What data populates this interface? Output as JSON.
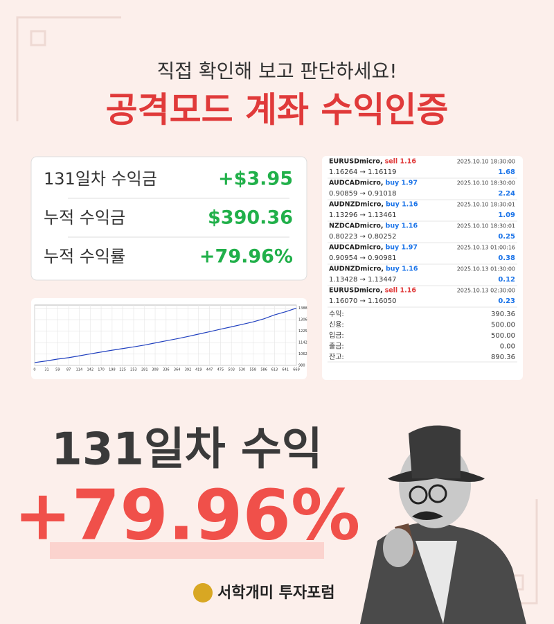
{
  "header": {
    "subtitle": "직접 확인해 보고 판단하세요!",
    "title": "공격모드 계좌 수익인증"
  },
  "stats": [
    {
      "label": "131일차 수익금",
      "value": "+$3.95"
    },
    {
      "label": "누적 수익금",
      "value": "$390.36"
    },
    {
      "label": "누적 수익률",
      "value": "+79.96%"
    }
  ],
  "chart_data": {
    "type": "line",
    "x": [
      0,
      31,
      59,
      87,
      114,
      142,
      170,
      198,
      225,
      253,
      281,
      308,
      336,
      364,
      392,
      419,
      447,
      475,
      503,
      530,
      558,
      586,
      613,
      641,
      669
    ],
    "values": [
      1000,
      1012,
      1025,
      1035,
      1048,
      1062,
      1075,
      1088,
      1100,
      1112,
      1125,
      1140,
      1155,
      1170,
      1186,
      1203,
      1220,
      1238,
      1255,
      1272,
      1290,
      1312,
      1340,
      1362,
      1388
    ],
    "color": "#1f3fbf",
    "xlim": [
      0,
      669
    ],
    "ylim": [
      980,
      1410
    ],
    "xticks": [
      0,
      31,
      59,
      87,
      114,
      142,
      170,
      198,
      225,
      253,
      281,
      308,
      336,
      364,
      392,
      419,
      447,
      475,
      503,
      530,
      558,
      586,
      613,
      641,
      669
    ],
    "yticks": [
      980,
      1062,
      1142,
      1225,
      1306,
      1388
    ],
    "grid": true
  },
  "trades": [
    {
      "symbol": "EURUSDmicro,",
      "side": "sell 1.16",
      "time": "2025.10.10 18:30:00",
      "prices": "1.16264 → 1.16119",
      "profit": "1.68"
    },
    {
      "symbol": "AUDCADmicro,",
      "side": "buy 1.97",
      "time": "2025.10.10 18:30:00",
      "prices": "0.90859 → 0.91018",
      "profit": "2.24"
    },
    {
      "symbol": "AUDNZDmicro,",
      "side": "buy 1.16",
      "time": "2025.10.10 18:30:01",
      "prices": "1.13296 → 1.13461",
      "profit": "1.09"
    },
    {
      "symbol": "NZDCADmicro,",
      "side": "buy 1.16",
      "time": "2025.10.10 18:30:01",
      "prices": "0.80223 → 0.80252",
      "profit": "0.25"
    },
    {
      "symbol": "AUDCADmicro,",
      "side": "buy 1.97",
      "time": "2025.10.13 01:00:16",
      "prices": "0.90954 → 0.90981",
      "profit": "0.38"
    },
    {
      "symbol": "AUDNZDmicro,",
      "side": "buy 1.16",
      "time": "2025.10.13 01:30:00",
      "prices": "1.13428 → 1.13447",
      "profit": "0.12"
    },
    {
      "symbol": "EURUSDmicro,",
      "side": "sell 1.16",
      "time": "2025.10.13 02:30:00",
      "prices": "1.16070 → 1.16050",
      "profit": "0.23"
    }
  ],
  "summary": [
    {
      "label": "수익:",
      "value": "390.36"
    },
    {
      "label": "신용:",
      "value": "500.00"
    },
    {
      "label": "입금:",
      "value": "500.00"
    },
    {
      "label": "출금:",
      "value": "0.00"
    },
    {
      "label": "잔고:",
      "value": "890.36"
    }
  ],
  "highlight": {
    "label": "131일차 수익",
    "value": "+79.96%"
  },
  "brand": "서학개미 투자포럼"
}
